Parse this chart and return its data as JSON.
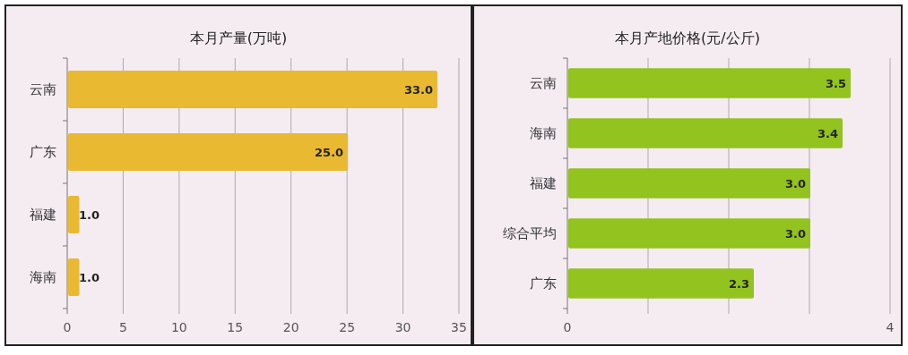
{
  "chart_data": [
    {
      "type": "bar",
      "orientation": "horizontal",
      "title": "本月产量(万吨)",
      "categories": [
        "云南",
        "广东",
        "福建",
        "海南"
      ],
      "series": [
        {
          "color": "#e8b931",
          "values": [
            33.0,
            25.0,
            1.0,
            1.0
          ],
          "value_labels": [
            "33.0",
            "25.0",
            "1.0",
            "1.0"
          ]
        }
      ],
      "xlim": [
        0,
        35
      ],
      "xticks": [
        0,
        5,
        10,
        15,
        20,
        25,
        30,
        35
      ],
      "grid": "x"
    },
    {
      "type": "bar",
      "orientation": "horizontal",
      "title": "本月产地价格(元/公斤)",
      "categories": [
        "云南",
        "海南",
        "福建",
        "综合平均",
        "广东"
      ],
      "series": [
        {
          "color": "#92c31e",
          "values": [
            3.5,
            3.4,
            3.0,
            3.0,
            2.3
          ],
          "value_labels": [
            "3.5",
            "3.4",
            "3.0",
            "3.0",
            "2.3"
          ]
        }
      ],
      "xlim": [
        0,
        4
      ],
      "xticks": [
        0,
        {
          "value": 1,
          "label": null
        },
        {
          "value": 2,
          "label": null
        },
        {
          "value": 3,
          "label": null
        },
        4
      ],
      "grid": "x"
    }
  ]
}
